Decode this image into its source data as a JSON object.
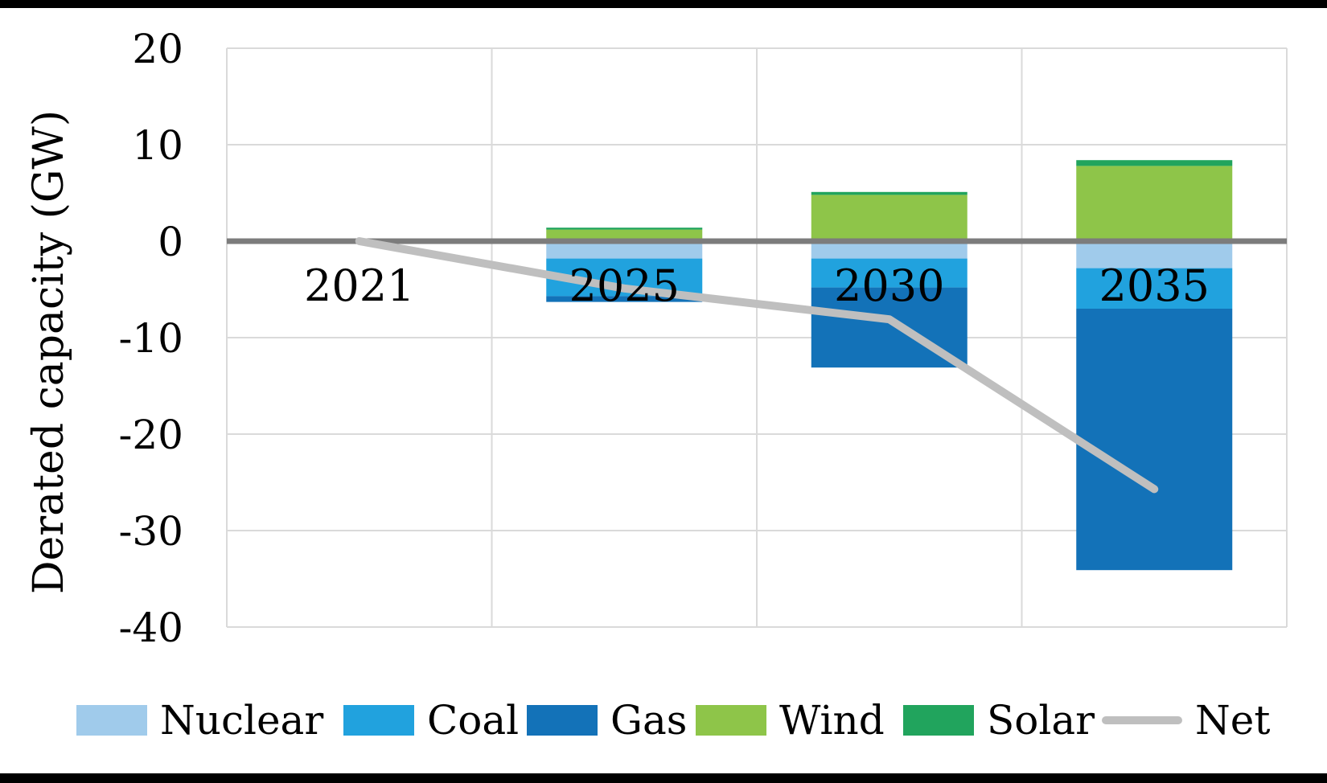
{
  "page": {
    "background": "#FFFFFF",
    "top_edge_bar_color": "#000000",
    "bottom_edge_bar_color": "#000000",
    "text_color": "#000000"
  },
  "chart_data": {
    "type": "bar",
    "subtype": "stacked-bar-with-line",
    "title": "",
    "xlabel": "",
    "ylabel": "Derated capacity (GW)",
    "categories": [
      "2021",
      "2025",
      "2030",
      "2035"
    ],
    "series": [
      {
        "name": "Nuclear",
        "kind": "bar",
        "color": "#A0CBEB",
        "values": [
          0,
          -1.8,
          -1.8,
          -2.8
        ]
      },
      {
        "name": "Coal",
        "kind": "bar",
        "color": "#21A2DE",
        "values": [
          0,
          -3.9,
          -3.0,
          -4.2
        ]
      },
      {
        "name": "Gas",
        "kind": "bar",
        "color": "#1372B8",
        "values": [
          0,
          -0.6,
          -8.3,
          -27.1
        ]
      },
      {
        "name": "Wind",
        "kind": "bar",
        "color": "#8EC549",
        "values": [
          0,
          1.2,
          4.8,
          7.8
        ]
      },
      {
        "name": "Solar",
        "kind": "bar",
        "color": "#21A45D",
        "values": [
          0,
          0.2,
          0.3,
          0.6
        ]
      },
      {
        "name": "Net",
        "kind": "line",
        "color": "#BFBFBF",
        "values": [
          0,
          -4.9,
          -8.1,
          -25.7
        ]
      }
    ],
    "yticks": [
      20,
      10,
      0,
      -10,
      -20,
      -30,
      -40
    ],
    "ylim": [
      -40,
      20
    ],
    "grid": true,
    "gridline_color": "#DADADA",
    "zero_line_color": "#7C7C7C",
    "legend_position": "bottom"
  }
}
